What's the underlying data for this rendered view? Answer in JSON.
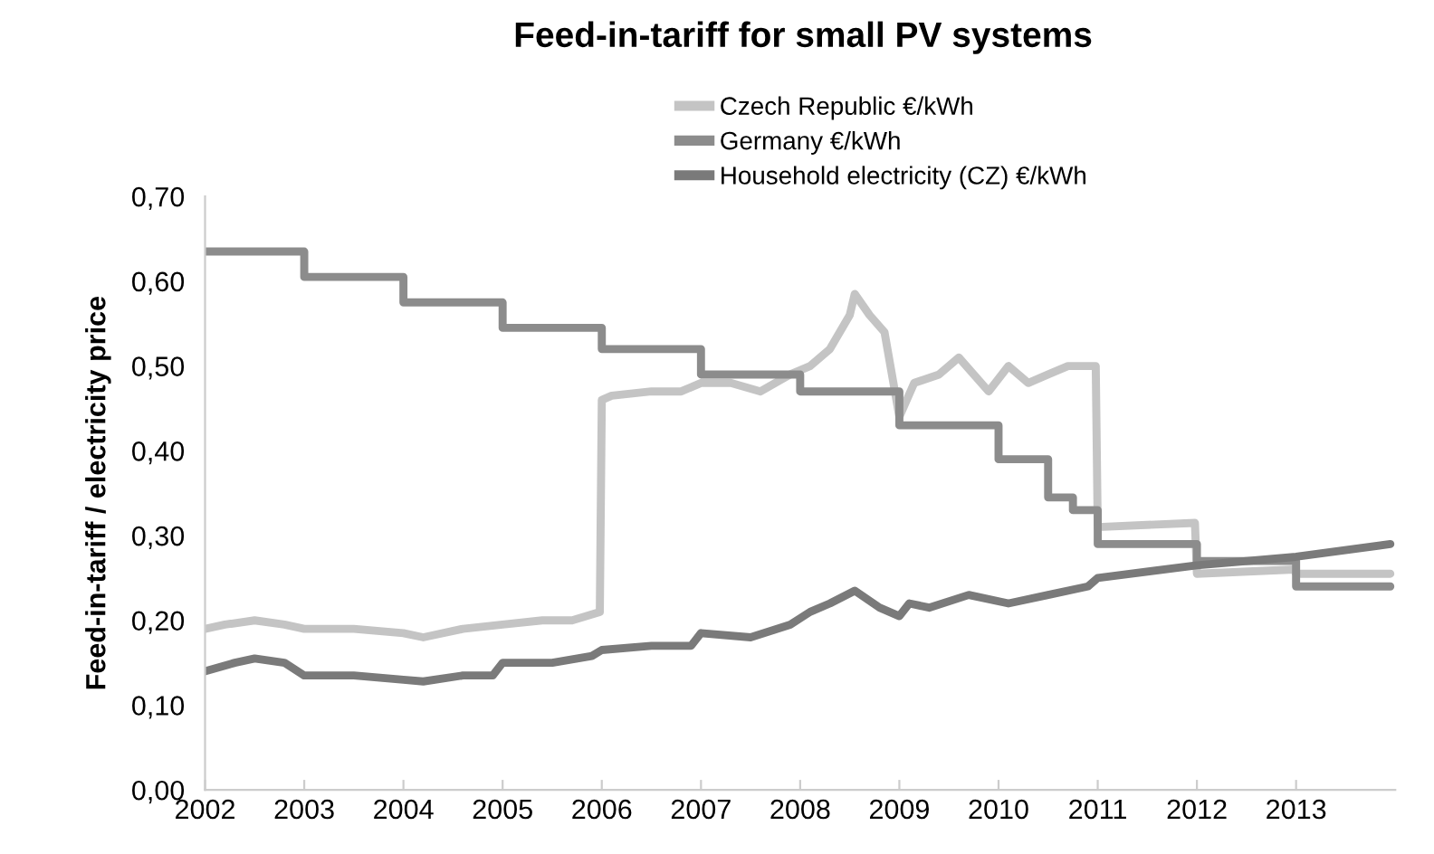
{
  "chart_data": {
    "type": "line",
    "title": "Feed-in-tariff for small PV systems",
    "ylabel": "Feed-in-tariff / electricity price",
    "xlim": [
      2002,
      2014
    ],
    "xticks": [
      2002,
      2003,
      2004,
      2005,
      2006,
      2007,
      2008,
      2009,
      2010,
      2011,
      2012,
      2013
    ],
    "ylim": [
      0,
      0.7
    ],
    "yticks": [
      {
        "value": 0,
        "label": "0,00"
      },
      {
        "value": 0.1,
        "label": "0,10"
      },
      {
        "value": 0.2,
        "label": "0,20"
      },
      {
        "value": 0.3,
        "label": "0,30"
      },
      {
        "value": 0.4,
        "label": "0,40"
      },
      {
        "value": 0.5,
        "label": "0,50"
      },
      {
        "value": 0.6,
        "label": "0,60"
      },
      {
        "value": 0.7,
        "label": "0,70"
      }
    ],
    "legend": "top right",
    "grid": false,
    "series": [
      {
        "name": "Czech Republic €/kWh",
        "color": "#c4c4c4",
        "x": [
          2002,
          2002.2,
          2002.5,
          2002.8,
          2003,
          2003.5,
          2004,
          2004.2,
          2004.6,
          2005,
          2005.4,
          2005.7,
          2005.98,
          2006,
          2006.1,
          2006.5,
          2006.8,
          2007,
          2007.3,
          2007.6,
          2007.9,
          2008.1,
          2008.3,
          2008.5,
          2008.55,
          2008.7,
          2008.85,
          2009,
          2009.15,
          2009.4,
          2009.6,
          2009.9,
          2010.1,
          2010.3,
          2010.5,
          2010.7,
          2010.98,
          2011,
          2011.98,
          2012,
          2012.98,
          2013,
          2013.95
        ],
        "values": [
          0.19,
          0.195,
          0.2,
          0.195,
          0.19,
          0.19,
          0.185,
          0.18,
          0.19,
          0.195,
          0.2,
          0.2,
          0.21,
          0.46,
          0.465,
          0.47,
          0.47,
          0.48,
          0.48,
          0.47,
          0.49,
          0.5,
          0.52,
          0.56,
          0.585,
          0.56,
          0.54,
          0.44,
          0.48,
          0.49,
          0.51,
          0.47,
          0.5,
          0.48,
          0.49,
          0.5,
          0.5,
          0.31,
          0.315,
          0.255,
          0.26,
          0.255,
          0.255
        ]
      },
      {
        "name": "Germany €/kWh",
        "type": "step",
        "color": "#8c8c8c",
        "x": [
          2002,
          2003,
          2004,
          2005,
          2006,
          2007,
          2008,
          2009,
          2010,
          2010.5,
          2010.75,
          2011,
          2012,
          2013,
          2013.95
        ],
        "values": [
          0.635,
          0.605,
          0.575,
          0.545,
          0.52,
          0.49,
          0.47,
          0.43,
          0.39,
          0.345,
          0.33,
          0.29,
          0.27,
          0.24,
          0.24
        ]
      },
      {
        "name": "Household electricity (CZ) €/kWh",
        "color": "#7a7a7a",
        "x": [
          2002,
          2002.3,
          2002.5,
          2002.8,
          2003,
          2003.5,
          2004,
          2004.2,
          2004.6,
          2004.9,
          2005,
          2005.5,
          2005.9,
          2006,
          2006.5,
          2006.9,
          2007,
          2007.5,
          2007.9,
          2008.1,
          2008.3,
          2008.55,
          2008.8,
          2009,
          2009.1,
          2009.3,
          2009.7,
          2010.1,
          2010.5,
          2010.9,
          2011,
          2012,
          2013,
          2013.95
        ],
        "values": [
          0.14,
          0.15,
          0.155,
          0.15,
          0.135,
          0.135,
          0.13,
          0.128,
          0.135,
          0.135,
          0.15,
          0.15,
          0.158,
          0.165,
          0.17,
          0.17,
          0.185,
          0.18,
          0.195,
          0.21,
          0.22,
          0.235,
          0.215,
          0.205,
          0.22,
          0.215,
          0.23,
          0.22,
          0.23,
          0.24,
          0.25,
          0.265,
          0.275,
          0.29
        ]
      }
    ]
  }
}
